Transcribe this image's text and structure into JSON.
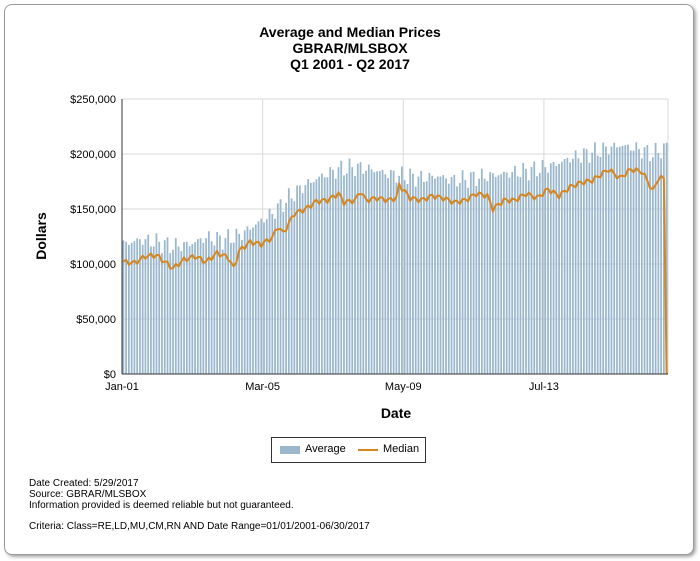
{
  "chart_data": {
    "type": "bar",
    "title": [
      "Average and Median Prices",
      "GBRAR/MLSBOX",
      "Q1 2001 - Q2 2017"
    ],
    "xlabel": "Date",
    "ylabel": "Dollars",
    "x_tick_labels": [
      "Jan-01",
      "Mar-05",
      "May-09",
      "Jul-13"
    ],
    "y_tick_labels": [
      "$0",
      "$50,000",
      "$100,000",
      "$150,000",
      "$200,000",
      "$250,000"
    ],
    "ylim": [
      0,
      250000
    ],
    "grid": true,
    "legend_position": "bottom-center",
    "colors": {
      "average": "#9ab7cd",
      "median": "#d6861e",
      "grid": "#d9d9d9"
    },
    "period_start": "Jan-01",
    "period_end": "Jun-17",
    "months": 198,
    "series": [
      {
        "name": "Average",
        "kind": "bar",
        "anchors": [
          [
            0,
            118000
          ],
          [
            6,
            122000
          ],
          [
            12,
            120000
          ],
          [
            18,
            116000
          ],
          [
            24,
            118000
          ],
          [
            30,
            124000
          ],
          [
            36,
            122000
          ],
          [
            42,
            126000
          ],
          [
            48,
            136000
          ],
          [
            54,
            146000
          ],
          [
            60,
            160000
          ],
          [
            66,
            172000
          ],
          [
            72,
            180000
          ],
          [
            78,
            186000
          ],
          [
            84,
            188000
          ],
          [
            90,
            186000
          ],
          [
            96,
            182000
          ],
          [
            102,
            180000
          ],
          [
            108,
            178000
          ],
          [
            114,
            180000
          ],
          [
            120,
            176000
          ],
          [
            126,
            178000
          ],
          [
            132,
            180000
          ],
          [
            138,
            182000
          ],
          [
            144,
            184000
          ],
          [
            150,
            186000
          ],
          [
            156,
            190000
          ],
          [
            162,
            196000
          ],
          [
            168,
            200000
          ],
          [
            174,
            204000
          ],
          [
            180,
            208000
          ],
          [
            186,
            205000
          ],
          [
            192,
            200000
          ],
          [
            197,
            206000
          ]
        ]
      },
      {
        "name": "Median",
        "kind": "line",
        "anchors": [
          [
            0,
            102000
          ],
          [
            4,
            101000
          ],
          [
            8,
            107000
          ],
          [
            12,
            108000
          ],
          [
            16,
            100000
          ],
          [
            18,
            96000
          ],
          [
            22,
            104000
          ],
          [
            26,
            107000
          ],
          [
            30,
            102000
          ],
          [
            34,
            110000
          ],
          [
            38,
            106000
          ],
          [
            40,
            96000
          ],
          [
            42,
            112000
          ],
          [
            46,
            120000
          ],
          [
            50,
            118000
          ],
          [
            54,
            124000
          ],
          [
            56,
            134000
          ],
          [
            58,
            128000
          ],
          [
            62,
            146000
          ],
          [
            66,
            150000
          ],
          [
            70,
            157000
          ],
          [
            74,
            158000
          ],
          [
            78,
            164000
          ],
          [
            80,
            156000
          ],
          [
            84,
            158000
          ],
          [
            86,
            166000
          ],
          [
            88,
            158000
          ],
          [
            92,
            160000
          ],
          [
            96,
            158000
          ],
          [
            99,
            160000
          ],
          [
            100,
            172000
          ],
          [
            104,
            160000
          ],
          [
            108,
            158000
          ],
          [
            112,
            162000
          ],
          [
            116,
            160000
          ],
          [
            120,
            156000
          ],
          [
            124,
            158000
          ],
          [
            128,
            164000
          ],
          [
            132,
            162000
          ],
          [
            134,
            150000
          ],
          [
            138,
            158000
          ],
          [
            142,
            158000
          ],
          [
            146,
            164000
          ],
          [
            150,
            160000
          ],
          [
            154,
            168000
          ],
          [
            158,
            162000
          ],
          [
            162,
            170000
          ],
          [
            166,
            174000
          ],
          [
            170,
            176000
          ],
          [
            176,
            186000
          ],
          [
            180,
            178000
          ],
          [
            184,
            186000
          ],
          [
            188,
            184000
          ],
          [
            190,
            176000
          ],
          [
            192,
            166000
          ],
          [
            194,
            178000
          ],
          [
            196,
            178000
          ],
          [
            197,
            0
          ]
        ]
      }
    ]
  },
  "legend": {
    "items": [
      "Average",
      "Median"
    ]
  },
  "footer": {
    "date_created": "Date Created: 5/29/2017",
    "source": "Source: GBRAR/MLSBOX",
    "disclaimer": "Information provided is deemed reliable but not guaranteed.",
    "criteria": "Criteria: Class=RE,LD,MU,CM,RN AND Date Range=01/01/2001-06/30/2017"
  }
}
